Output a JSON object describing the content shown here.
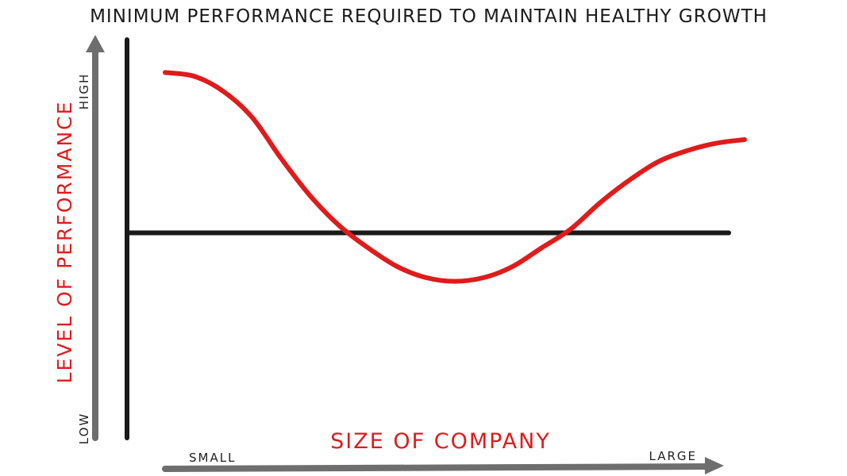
{
  "chart_data": {
    "type": "line",
    "title": "MINIMUM PERFORMANCE REQUIRED TO MAINTAIN HEALTHY GROWTH",
    "xlabel": "SIZE OF COMPANY",
    "ylabel": "LEVEL OF PERFORMANCE",
    "x_tick_labels": {
      "start": "SMALL",
      "end": "LARGE"
    },
    "y_tick_labels": {
      "start": "LOW",
      "end": "HIGH"
    },
    "xlim": [
      0,
      100
    ],
    "ylim": [
      0,
      100
    ],
    "grid": false,
    "threshold_value": 55,
    "x": [
      0,
      5,
      10,
      15,
      20,
      25,
      30,
      35,
      40,
      45,
      50,
      55,
      60,
      65,
      70,
      75,
      80,
      85,
      90,
      95,
      100
    ],
    "series": [
      {
        "values": [
          98,
          97,
          93,
          86,
          75,
          65,
          57,
          51,
          46,
          43,
          42,
          43,
          46,
          51,
          56,
          63,
          69,
          74,
          77,
          79,
          80
        ]
      }
    ],
    "colors": {
      "curve": "#e01b1b",
      "threshold": "#1a1a1a",
      "y_axis_arrow": "#6e6e6e",
      "x_axis_arrow": "#6e6e6e",
      "left_border": "#1a1a1a",
      "label_red": "#e01b1b"
    }
  }
}
